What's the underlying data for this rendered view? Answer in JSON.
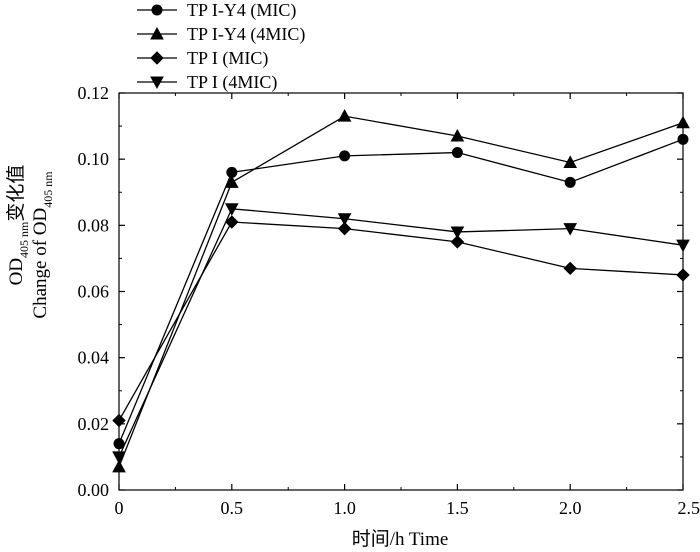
{
  "chart_data": {
    "type": "line",
    "x": [
      0,
      0.5,
      1.0,
      1.5,
      2.0,
      2.5
    ],
    "xlim": [
      0,
      2.5
    ],
    "ylim": [
      0,
      0.12
    ],
    "x_ticks": [
      {
        "value": 0,
        "label": "0"
      },
      {
        "value": 0.5,
        "label": "0.5"
      },
      {
        "value": 1.0,
        "label": "1.0"
      },
      {
        "value": 1.5,
        "label": "1.5"
      },
      {
        "value": 2.0,
        "label": "2.0"
      },
      {
        "value": 2.5,
        "label": "2.5"
      }
    ],
    "y_ticks": [
      {
        "value": 0,
        "label": "0.00"
      },
      {
        "value": 0.02,
        "label": "0.02"
      },
      {
        "value": 0.04,
        "label": "0.04"
      },
      {
        "value": 0.06,
        "label": "0.06"
      },
      {
        "value": 0.08,
        "label": "0.08"
      },
      {
        "value": 0.1,
        "label": "0.10"
      },
      {
        "value": 0.12,
        "label": "0.12"
      }
    ],
    "xlabel": "时间/h Time",
    "ylabel": {
      "cn_prefix": "OD",
      "cn_subscript": "405 nm",
      "cn_suffix": "变化值",
      "en_prefix": "Change of OD",
      "en_subscript": "405 nm"
    },
    "legend_position": "top-left",
    "series": [
      {
        "name": "TP I-Y4 (MIC)",
        "marker": "circle",
        "values": [
          0.014,
          0.096,
          0.101,
          0.102,
          0.093,
          0.106
        ]
      },
      {
        "name": "TP I-Y4 (4MIC)",
        "marker": "triangle-up",
        "values": [
          0.007,
          0.093,
          0.113,
          0.107,
          0.099,
          0.111
        ]
      },
      {
        "name": "TP I (MIC)",
        "marker": "diamond",
        "values": [
          0.021,
          0.081,
          0.079,
          0.075,
          0.067,
          0.065
        ]
      },
      {
        "name": "TP I (4MIC)",
        "marker": "triangle-down",
        "values": [
          0.01,
          0.085,
          0.082,
          0.078,
          0.079,
          0.074
        ]
      }
    ]
  }
}
